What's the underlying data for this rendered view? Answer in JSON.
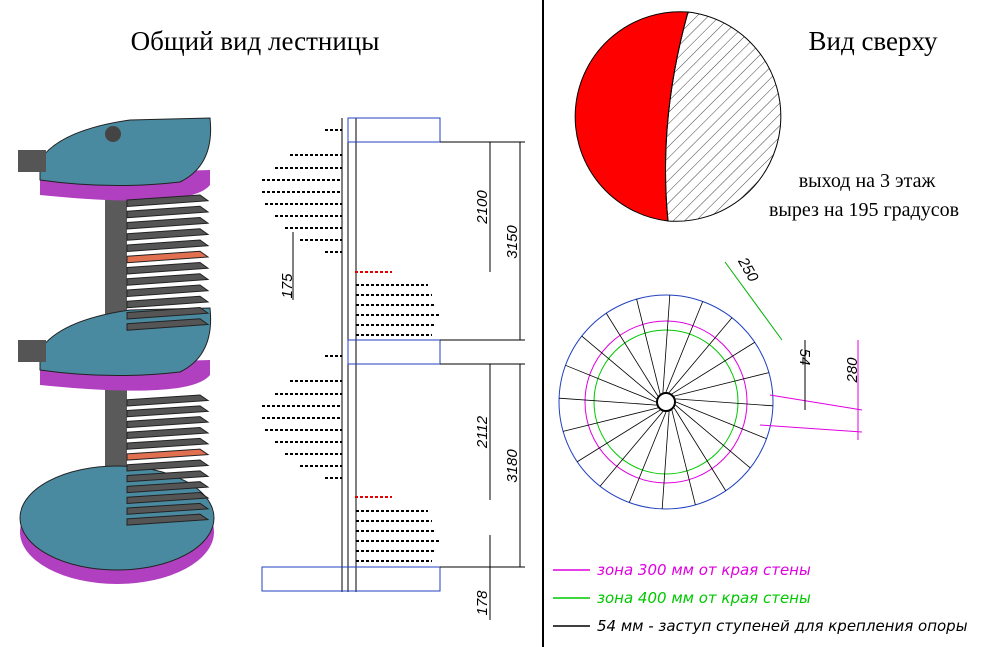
{
  "left_title": "Общий вид лестницы",
  "right_title": "Вид сверху",
  "elevation": {
    "dimensions": [
      2100,
      3150,
      175,
      2112,
      3180,
      178
    ]
  },
  "plan": {
    "notes": [
      "выход на 3 этаж",
      "вырез на 195 градусов"
    ],
    "dimensions": [
      250,
      54,
      280
    ]
  },
  "legend": [
    {
      "label": "зона 300 мм от края стены",
      "color": "#e000e0"
    },
    {
      "label": "зона 400 мм от края стены",
      "color": "#00c800"
    },
    {
      "label": "54 мм - заступ ступеней для крепления опоры",
      "color": "#000000"
    }
  ]
}
